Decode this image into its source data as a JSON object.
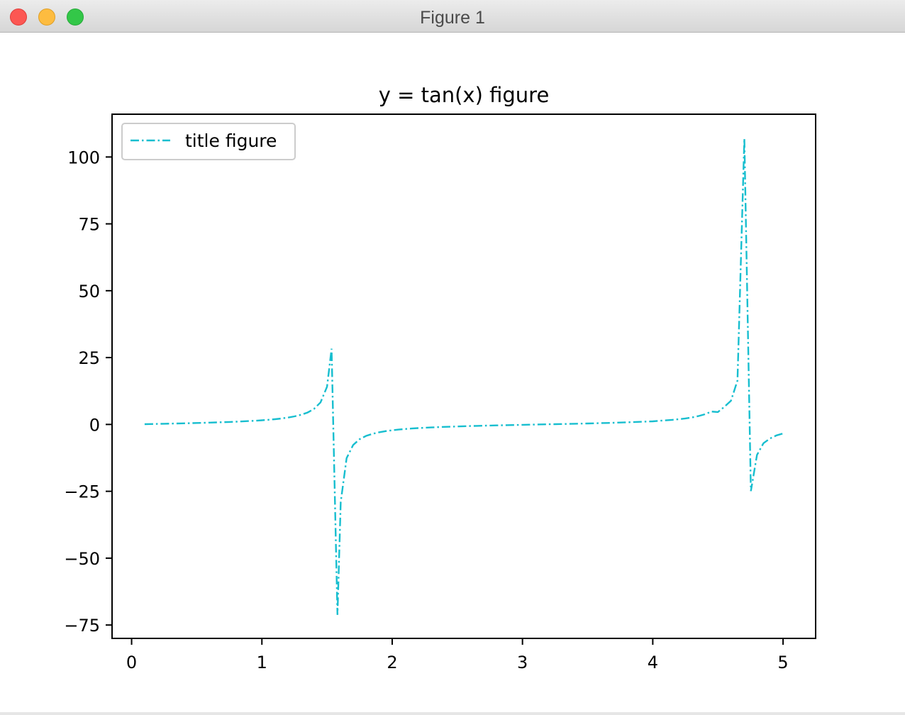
{
  "window": {
    "title": "Figure 1"
  },
  "chart_data": {
    "type": "line",
    "title": "y = tan(x) figure",
    "xlabel": "",
    "ylabel": "",
    "xlim": [
      -0.15,
      5.25
    ],
    "ylim": [
      -80,
      116
    ],
    "x_ticks": [
      0,
      1,
      2,
      3,
      4,
      5
    ],
    "x_tick_labels": [
      "0",
      "1",
      "2",
      "3",
      "4",
      "5"
    ],
    "y_ticks": [
      100,
      75,
      50,
      25,
      0,
      -25,
      -50,
      -75
    ],
    "y_tick_labels": [
      "100",
      "75",
      "50",
      "25",
      "0",
      "−25",
      "−50",
      "−75"
    ],
    "grid": false,
    "legend": {
      "position": "top-left",
      "entries": [
        "title figure"
      ]
    },
    "series": [
      {
        "name": "title figure",
        "color": "#17becf",
        "linestyle": "dash-dot",
        "function": "tan(x)",
        "x": [
          0.1,
          0.15,
          0.2,
          0.25,
          0.3,
          0.35,
          0.4,
          0.45,
          0.5,
          0.55,
          0.6,
          0.65,
          0.7,
          0.75,
          0.8,
          0.85,
          0.9,
          0.95,
          1.0,
          1.05,
          1.1,
          1.15,
          1.2,
          1.25,
          1.3,
          1.35,
          1.4,
          1.45,
          1.5,
          1.535,
          1.58,
          1.605,
          1.65,
          1.7,
          1.75,
          1.8,
          1.85,
          1.9,
          1.95,
          2.0,
          2.05,
          2.1,
          2.15,
          2.2,
          2.25,
          2.3,
          2.35,
          2.4,
          2.45,
          2.5,
          2.55,
          2.6,
          2.65,
          2.7,
          2.75,
          2.8,
          2.85,
          2.9,
          2.95,
          3.0,
          3.05,
          3.1,
          3.15,
          3.2,
          3.25,
          3.3,
          3.35,
          3.4,
          3.45,
          3.5,
          3.55,
          3.6,
          3.65,
          3.7,
          3.75,
          3.8,
          3.85,
          3.9,
          3.95,
          4.0,
          4.05,
          4.1,
          4.15,
          4.2,
          4.25,
          4.3,
          4.35,
          4.4,
          4.45,
          4.5,
          4.55,
          4.6,
          4.65,
          4.703,
          4.753,
          4.8,
          4.85,
          4.9,
          4.95,
          5.0
        ],
        "y": [
          0.1,
          0.15,
          0.2,
          0.26,
          0.31,
          0.37,
          0.42,
          0.48,
          0.55,
          0.61,
          0.68,
          0.76,
          0.84,
          0.93,
          1.03,
          1.14,
          1.26,
          1.4,
          1.56,
          1.74,
          1.96,
          2.23,
          2.57,
          3.01,
          3.6,
          4.46,
          5.8,
          8.24,
          14.1,
          28.3,
          -71.2,
          -29.0,
          -12.6,
          -7.7,
          -5.52,
          -4.29,
          -3.5,
          -2.93,
          -2.51,
          -2.19,
          -1.93,
          -1.71,
          -1.53,
          -1.37,
          -1.24,
          -1.12,
          -1.01,
          -0.92,
          -0.83,
          -0.75,
          -0.67,
          -0.6,
          -0.53,
          -0.47,
          -0.4,
          -0.36,
          -0.3,
          -0.24,
          -0.19,
          -0.14,
          -0.09,
          -0.04,
          0.01,
          0.06,
          0.11,
          0.16,
          0.21,
          0.26,
          0.31,
          0.37,
          0.42,
          0.49,
          0.55,
          0.62,
          0.7,
          0.78,
          0.87,
          0.97,
          1.08,
          1.16,
          1.36,
          1.52,
          1.72,
          1.96,
          2.25,
          2.63,
          3.12,
          3.81,
          4.82,
          4.64,
          6.6,
          8.86,
          16.4,
          106.9,
          -24.9,
          -11.4,
          -7.0,
          -5.27,
          -4.1,
          -3.38
        ]
      }
    ]
  }
}
